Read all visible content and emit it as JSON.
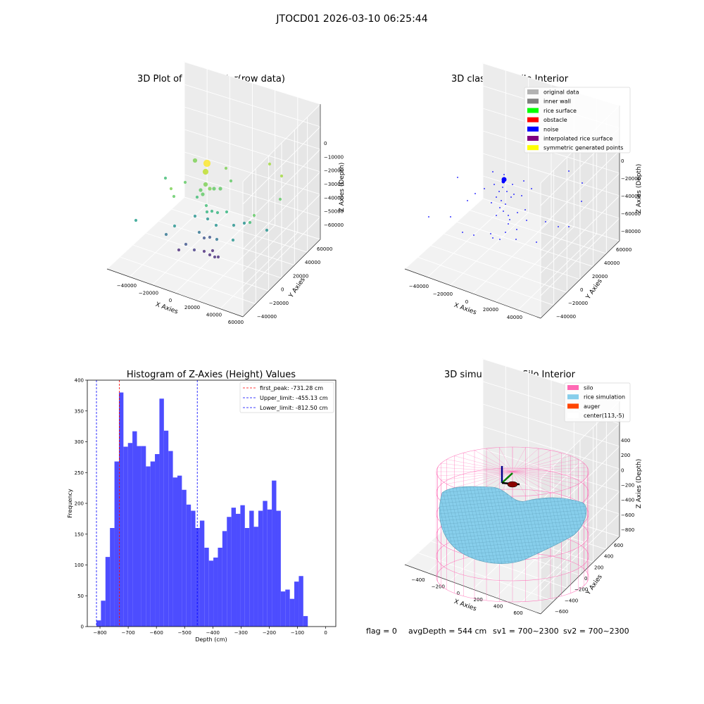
{
  "figure_title": "JTOCD01 2026-03-10 06:25:44",
  "status_line": {
    "flag": "flag = 0",
    "avg_depth": "avgDepth = 544 cm",
    "sv1": "sv1 = 700~2300",
    "sv2": "sv2 = 700~2300"
  },
  "colors": {
    "histogram_bar": "#4d4dff",
    "first_peak_line": "#ff0000",
    "limit_lines": "#0000ff",
    "silo_wire": "#ff69b4",
    "rice_surface": "#87ceeb",
    "auger": "#ff4500",
    "noise_points": "#0000ff"
  },
  "chart_data": [
    {
      "type": "scatter",
      "projection": "3d",
      "title": "3D Plot of Silo Interior(row data)",
      "xlabel": "X Axies",
      "ylabel": "Y Axies",
      "zlabel": "Z Axies (Depth)",
      "x_ticks": [
        "−40000",
        "−20000",
        "0",
        "20000",
        "40000",
        "60000"
      ],
      "y_ticks": [
        "−40000",
        "−20000",
        "0",
        "20000",
        "40000",
        "60000"
      ],
      "z_ticks": [
        "0",
        "−10000",
        "−20000",
        "−30000",
        "−40000",
        "−50000",
        "−60000"
      ],
      "colormap": "viridis",
      "grid": true
    },
    {
      "type": "scatter",
      "projection": "3d",
      "title": "3D classify of Silo Interior",
      "xlabel": "X Axies",
      "ylabel": "Y Axies",
      "zlabel": "Z Axies (Depth)",
      "x_ticks": [
        "−40000",
        "−20000",
        "0",
        "20000",
        "40000"
      ],
      "y_ticks": [
        "−40000",
        "−20000",
        "0",
        "20000",
        "40000",
        "60000"
      ],
      "z_ticks": [
        "0",
        "−20000",
        "−40000",
        "−60000",
        "−80000"
      ],
      "legend_position": "top-right",
      "legend": [
        {
          "label": "original data",
          "color": "#b3b3b3"
        },
        {
          "label": "inner wall",
          "color": "#808080"
        },
        {
          "label": "rice surface",
          "color": "#00ff00"
        },
        {
          "label": "obstacle",
          "color": "#ff0000"
        },
        {
          "label": "noise",
          "color": "#0000ff"
        },
        {
          "label": "interpolated rice surface",
          "color": "#800080"
        },
        {
          "label": "symmetric generated points",
          "color": "#ffff00"
        }
      ],
      "grid": true
    },
    {
      "type": "bar",
      "title": "Histogram of Z-Axies (Height) Values",
      "xlabel": "Depth (cm)",
      "ylabel": "Frequency",
      "xlim": [
        -845,
        36
      ],
      "ylim": [
        0,
        400
      ],
      "x_ticks": [
        -800,
        -700,
        -600,
        -500,
        -400,
        -300,
        -200,
        -100,
        0
      ],
      "x_tick_labels": [
        "−800",
        "−700",
        "−600",
        "−500",
        "−400",
        "−300",
        "−200",
        "−100",
        "0"
      ],
      "y_ticks": [
        0,
        50,
        100,
        150,
        200,
        250,
        300,
        350,
        400
      ],
      "bin_start": -812.5,
      "bin_width": 15.94,
      "values": [
        10,
        42,
        113,
        160,
        268,
        380,
        292,
        298,
        317,
        293,
        293,
        260,
        268,
        280,
        370,
        318,
        285,
        242,
        245,
        222,
        198,
        188,
        160,
        172,
        128,
        107,
        112,
        128,
        155,
        178,
        193,
        183,
        197,
        160,
        188,
        162,
        188,
        204,
        190,
        237,
        188,
        57,
        60,
        45,
        73,
        82,
        17
      ],
      "reference_lines": [
        {
          "label": "first_peak: -731.28 cm",
          "x": -731.28,
          "color": "#ff0000"
        },
        {
          "label": "Upper_limit: -455.13 cm",
          "x": -455.13,
          "color": "#0000ff"
        },
        {
          "label": "Lower_limit: -812.50 cm",
          "x": -812.5,
          "color": "#0000ff"
        }
      ],
      "legend_position": "top-right",
      "grid": false
    },
    {
      "type": "surface",
      "projection": "3d",
      "title": "3D simulation of Silo Interior",
      "xlabel": "X Axies",
      "ylabel": "Y Axies",
      "zlabel": "Z Axies (Depth)",
      "x_ticks": [
        "−400",
        "−200",
        "0",
        "200",
        "400",
        "600"
      ],
      "y_ticks": [
        "−600",
        "−400",
        "−200",
        "0",
        "200",
        "400",
        "600"
      ],
      "z_ticks": [
        "400",
        "200",
        "0",
        "−200",
        "−400",
        "−600",
        "−800"
      ],
      "legend_position": "top-right",
      "legend": [
        {
          "label": "silo",
          "color": "#ff69b4"
        },
        {
          "label": "rice simulation",
          "color": "#87ceeb"
        },
        {
          "label": "auger",
          "color": "#ff4500"
        },
        {
          "label": "center(113,-5)",
          "color": "#ffffff"
        }
      ],
      "grid": true
    }
  ]
}
